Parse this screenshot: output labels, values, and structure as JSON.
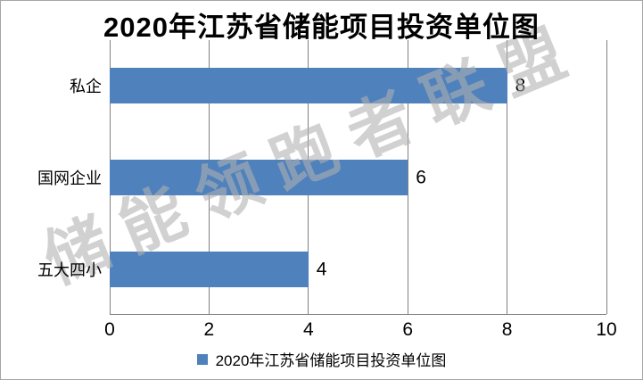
{
  "watermark": {
    "text": "储能领跑者联盟",
    "color": "rgba(175,175,175,0.58)"
  },
  "chart_data": {
    "type": "bar",
    "orientation": "horizontal",
    "title": "2020年江苏省储能项目投资单位图",
    "categories": [
      "私企",
      "国网企业",
      "五大四小"
    ],
    "values": [
      8,
      6,
      4
    ],
    "xlabel": "",
    "ylabel": "",
    "xlim": [
      0,
      10
    ],
    "xticks": [
      0,
      2,
      4,
      6,
      8,
      10
    ],
    "grid": true,
    "legend": {
      "label": "2020年江苏省储能项目投资单位图",
      "position": "bottom"
    },
    "colors": {
      "bar": "#4F81BD",
      "gridline": "#808080",
      "axis": "#808080",
      "text": "#000000",
      "border": "#a6a6a6"
    }
  }
}
